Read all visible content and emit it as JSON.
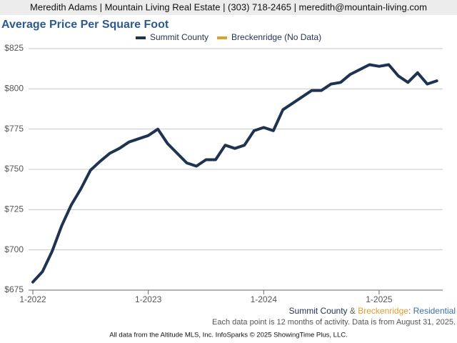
{
  "header": {
    "text": "Meredith Adams | Mountain Living Real Estate | (303) 718-2465 | meredith@mountain-living.com"
  },
  "chart_data": {
    "type": "line",
    "title": "Average Price Per Square Foot",
    "categories": [
      "1-2022",
      null,
      null,
      null,
      null,
      null,
      null,
      null,
      null,
      null,
      null,
      null,
      "1-2023",
      null,
      null,
      null,
      null,
      null,
      null,
      null,
      null,
      null,
      null,
      null,
      "1-2024",
      null,
      null,
      null,
      null,
      null,
      null,
      null,
      null,
      null,
      null,
      null,
      "1-2025",
      null,
      null,
      null,
      null,
      null,
      null
    ],
    "series": [
      {
        "name": "Summit County",
        "color": "#1f3350",
        "values": [
          680,
          686.5,
          699,
          715,
          728,
          738,
          749.5,
          755,
          760,
          763,
          767,
          769,
          771,
          775,
          766,
          760,
          754,
          752,
          756,
          756,
          765,
          763,
          765,
          774,
          776,
          774,
          787,
          791,
          795,
          799,
          799,
          803,
          804,
          809,
          812,
          815,
          814,
          815,
          808,
          804,
          810,
          803,
          805
        ]
      },
      {
        "name": "Breckenridge (No Data)",
        "color": "#e0a030",
        "values": [
          null,
          null,
          null,
          null,
          null,
          null,
          null,
          null,
          null,
          null,
          null,
          null,
          null,
          null,
          null,
          null,
          null,
          null,
          null,
          null,
          null,
          null,
          null,
          null,
          null,
          null,
          null,
          null,
          null,
          null,
          null,
          null,
          null,
          null,
          null,
          null,
          null,
          null,
          null,
          null,
          null,
          null,
          null
        ]
      }
    ],
    "ylim": [
      675,
      825
    ],
    "yticks": [
      {
        "value": 675,
        "label": "$675"
      },
      {
        "value": 700,
        "label": "$700"
      },
      {
        "value": 725,
        "label": "$725"
      },
      {
        "value": 750,
        "label": "$750"
      },
      {
        "value": 775,
        "label": "$775"
      },
      {
        "value": 800,
        "label": "$800"
      },
      {
        "value": 825,
        "label": "$825"
      }
    ],
    "grid": true,
    "legend": "top"
  },
  "footer": {
    "area": [
      "Summit County",
      " & ",
      "Breckenridge",
      ": ",
      "Residential"
    ],
    "note": "Each data point is 12 months of activity. Data is from August 31, 2025.",
    "source": "All data from the Altitude MLS, Inc. InfoSparks © 2025 ShowingTime Plus, LLC."
  }
}
